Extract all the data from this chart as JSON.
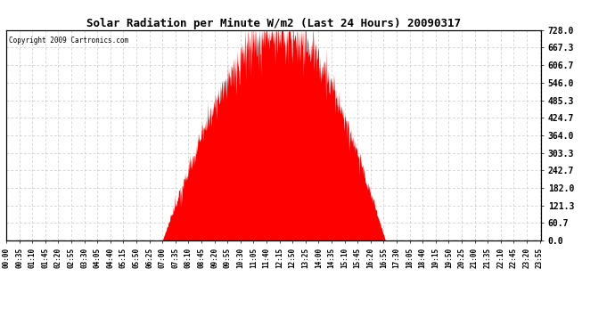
{
  "title": "Solar Radiation per Minute W/m2 (Last 24 Hours) 20090317",
  "copyright": "Copyright 2009 Cartronics.com",
  "fill_color": "#FF0000",
  "line_color": "#FF0000",
  "dashed_line_color": "#FF0000",
  "background_color": "#FFFFFF",
  "grid_color": "#C8C8C8",
  "yticks": [
    0.0,
    60.7,
    121.3,
    182.0,
    242.7,
    303.3,
    364.0,
    424.7,
    485.3,
    546.0,
    606.7,
    667.3,
    728.0
  ],
  "ymax": 728.0,
  "ymin": 0.0,
  "num_minutes": 1440,
  "sunrise_minute": 420,
  "sunset_minute": 1020,
  "peak_minute": 740,
  "peak_value": 728.0,
  "tick_interval_minutes": 35
}
